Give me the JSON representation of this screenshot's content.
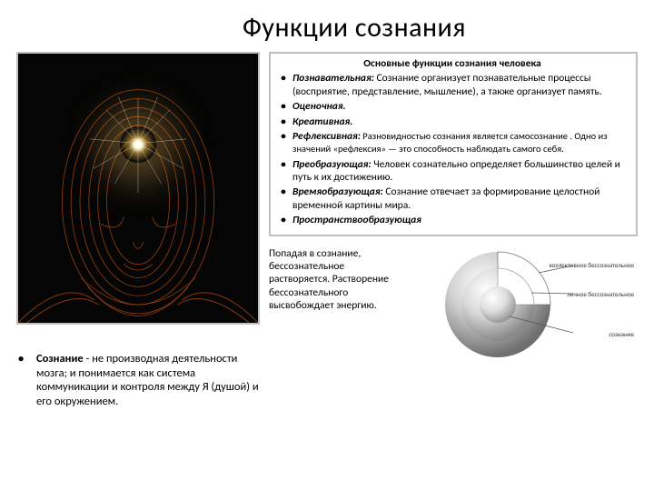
{
  "title": "Функции сознания",
  "caption": {
    "bullet": "•",
    "bold": "Сознание",
    "rest": " - не производная деятельности мозга; и понимается как система коммуникации и контроля между Я (душой) и его окружением."
  },
  "functions": {
    "heading": "Основные функции сознания человека",
    "items": [
      {
        "bullet": "•",
        "name": "Познавательная:",
        "desc": " Сознание организует познавательные процессы (восприятие, представление, мышление), а также организует память."
      },
      {
        "bullet": "•",
        "name": "Оценочная.",
        "desc": ""
      },
      {
        "bullet": "•",
        "name": "Креативная.",
        "desc": ""
      },
      {
        "bullet": "•",
        "name": "Рефлексивная:",
        "desc": " Разновидностью сознания является самосознание . Одно из значений «рефлексия» — это способность наблюдать самого себя.",
        "desc_small": true
      },
      {
        "bullet": "•",
        "name": "Преобразующая:",
        "desc": " Человек сознательно определяет большинство целей и путь к их достижению."
      },
      {
        "bullet": "•",
        "name": "Времяобразующая:",
        "desc": " Сознание отвечает за формирование целостной временной картины мира."
      },
      {
        "bullet": "•",
        "name": "Пространствообразующая",
        "desc": ""
      }
    ]
  },
  "dissolve_text": "Попадая в сознание, бессознательное растворяется. Растворение бессознательного высвобождает энергию.",
  "sphere_labels": {
    "l1": "коллективное бессознательное",
    "l2": "личное бессознательное",
    "l3": "сознание"
  },
  "colors": {
    "bg": "#ffffff",
    "border": "#bfbfbf",
    "text": "#000000",
    "head_bg": "#050505",
    "head_line": "#c05010",
    "head_line2": "#d47030",
    "sphere_outer": "url(#gOuter)",
    "sphere_mid": "url(#gMid)",
    "sphere_inner": "url(#gInner)"
  }
}
